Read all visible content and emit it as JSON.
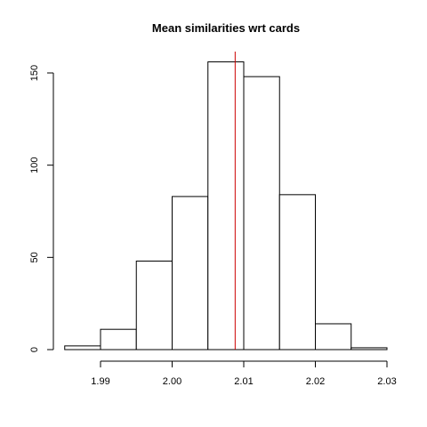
{
  "chart_data": {
    "type": "bar",
    "title": "Mean similarities wrt cards",
    "xlabel": "",
    "ylabel": "",
    "bins": [
      {
        "start": 1.985,
        "end": 1.99,
        "count": 2
      },
      {
        "start": 1.99,
        "end": 1.995,
        "count": 11
      },
      {
        "start": 1.995,
        "end": 2.0,
        "count": 48
      },
      {
        "start": 2.0,
        "end": 2.005,
        "count": 83
      },
      {
        "start": 2.005,
        "end": 2.01,
        "count": 156
      },
      {
        "start": 2.01,
        "end": 2.015,
        "count": 148
      },
      {
        "start": 2.015,
        "end": 2.02,
        "count": 84
      },
      {
        "start": 2.02,
        "end": 2.025,
        "count": 14
      },
      {
        "start": 2.025,
        "end": 2.03,
        "count": 1
      }
    ],
    "xlim": [
      1.985,
      2.03
    ],
    "ylim": [
      0,
      160
    ],
    "x_ticks": [
      1.99,
      2.0,
      2.01,
      2.02,
      2.03
    ],
    "x_tick_labels": [
      "1.99",
      "2.00",
      "2.01",
      "2.02",
      "2.03"
    ],
    "y_ticks": [
      0,
      50,
      100,
      150
    ],
    "y_tick_labels": [
      "0",
      "50",
      "100",
      "150"
    ],
    "reference_line": {
      "x": 2.0088,
      "color": "#cc0000"
    },
    "bar_fill": "#ffffff",
    "bar_stroke": "#000000",
    "grid": false
  }
}
